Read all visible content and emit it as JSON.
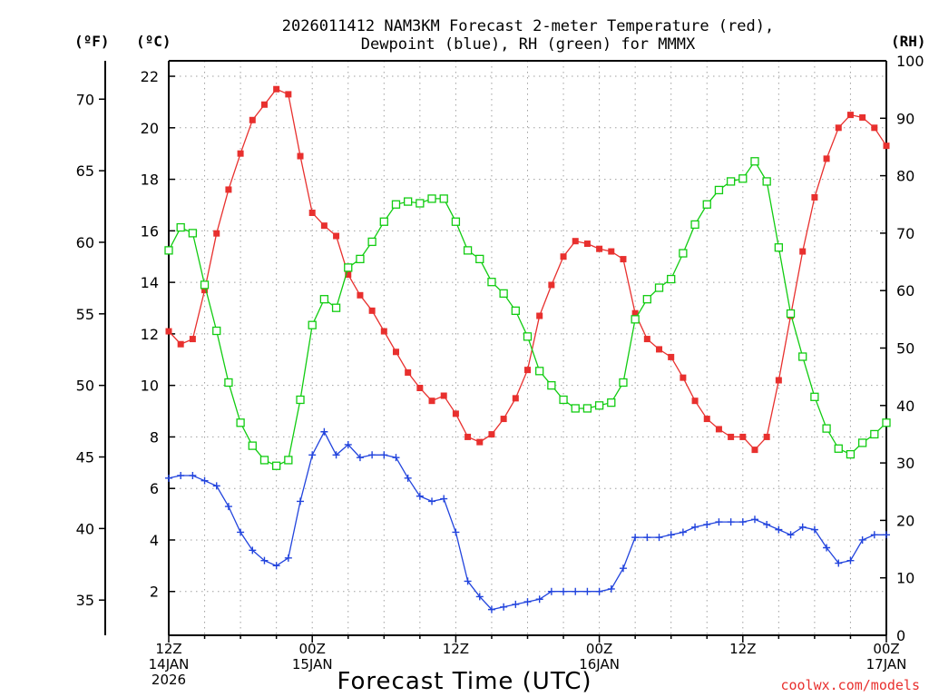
{
  "chart_data": {
    "type": "line",
    "title_line1": "2026011412 NAM3KM Forecast 2-meter Temperature (red),",
    "title_line2": "Dewpoint (blue), RH (green) for MMMX",
    "xlabel": "Forecast Time (UTC)",
    "unit_f": "(ºF)",
    "unit_c": "(ºC)",
    "unit_rh": "(RH)",
    "credit": "coolwx.com/models",
    "xlim": [
      0,
      60
    ],
    "ylim_c": [
      0.3,
      22.6
    ],
    "ylim_rh": [
      0,
      100
    ],
    "x_ticks": [
      {
        "x": 0,
        "lines": [
          "12Z",
          "14JAN",
          "2026"
        ]
      },
      {
        "x": 12,
        "lines": [
          "00Z",
          "15JAN"
        ]
      },
      {
        "x": 24,
        "lines": [
          "12Z"
        ]
      },
      {
        "x": 36,
        "lines": [
          "00Z",
          "16JAN"
        ]
      },
      {
        "x": 48,
        "lines": [
          "12Z"
        ]
      },
      {
        "x": 60,
        "lines": [
          "00Z",
          "17JAN"
        ]
      }
    ],
    "y_ticks_c": [
      "2",
      "4",
      "6",
      "8",
      "10",
      "12",
      "14",
      "16",
      "18",
      "20",
      "22"
    ],
    "y_ticks_f": [
      "35",
      "40",
      "45",
      "50",
      "55",
      "60",
      "65",
      "70"
    ],
    "y_ticks_rh": [
      "0",
      "10",
      "20",
      "30",
      "40",
      "50",
      "60",
      "70",
      "80",
      "90",
      "100"
    ],
    "colors": {
      "temperature": "#e8302e",
      "dewpoint": "#2244dd",
      "rh": "#11cc11",
      "grid": "#a0a0a0",
      "credit": "#e8302e"
    },
    "series": [
      {
        "name": "Temperature",
        "unit": "C",
        "marker": "filled-square",
        "values": [
          12.1,
          11.6,
          11.8,
          13.7,
          15.9,
          17.6,
          19.0,
          20.3,
          20.9,
          21.5,
          21.3,
          18.9,
          16.7,
          16.2,
          15.8,
          14.3,
          13.5,
          12.9,
          12.1,
          11.3,
          10.5,
          9.9,
          9.4,
          9.6,
          8.9,
          8.0,
          7.8,
          8.1,
          8.7,
          9.5,
          10.6,
          12.7,
          13.9,
          15.0,
          15.6,
          15.5,
          15.3,
          15.2,
          14.9,
          12.8,
          11.8,
          11.4,
          11.1,
          10.3,
          9.4,
          8.7,
          8.3,
          8.0,
          8.0,
          7.5,
          8.0,
          10.2,
          12.7,
          15.2,
          17.3,
          18.8,
          20.0,
          20.5,
          20.4,
          20.0,
          19.3
        ]
      },
      {
        "name": "Dewpoint",
        "unit": "C",
        "marker": "plus",
        "values": [
          6.4,
          6.5,
          6.5,
          6.3,
          6.1,
          5.3,
          4.3,
          3.6,
          3.2,
          3.0,
          3.3,
          5.5,
          7.3,
          8.2,
          7.3,
          7.7,
          7.2,
          7.3,
          7.3,
          7.2,
          6.4,
          5.7,
          5.5,
          5.6,
          4.3,
          2.4,
          1.8,
          1.3,
          1.4,
          1.5,
          1.6,
          1.7,
          2.0,
          2.0,
          2.0,
          2.0,
          2.0,
          2.1,
          2.9,
          4.1,
          4.1,
          4.1,
          4.2,
          4.3,
          4.5,
          4.6,
          4.7,
          4.7,
          4.7,
          4.8,
          4.6,
          4.4,
          4.2,
          4.5,
          4.4,
          3.7,
          3.1,
          3.2,
          4.0,
          4.2,
          4.2
        ]
      },
      {
        "name": "RH",
        "unit": "%",
        "marker": "open-square",
        "values": [
          67,
          71,
          70,
          61,
          53,
          44,
          37,
          33,
          30.5,
          29.5,
          30.5,
          41,
          54,
          58.5,
          57,
          64,
          65.5,
          68.5,
          72,
          75,
          75.5,
          75.2,
          76,
          76,
          72,
          67,
          65.5,
          61.5,
          59.5,
          56.5,
          52,
          46,
          43.5,
          41,
          39.5,
          39.5,
          40,
          40.5,
          44,
          55,
          58.5,
          60.5,
          62,
          66.5,
          71.5,
          75,
          77.5,
          79,
          79.5,
          82.5,
          79,
          67.5,
          56,
          48.5,
          41.5,
          36,
          32.5,
          31.5,
          33.5,
          35,
          37
        ]
      }
    ]
  }
}
